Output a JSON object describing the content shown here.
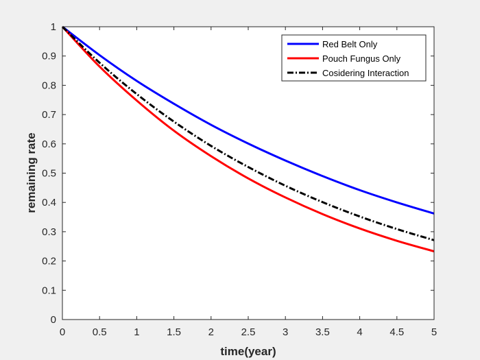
{
  "chart_data": {
    "type": "line",
    "xlabel": "time(year)",
    "ylabel": "remaining rate",
    "xlim": [
      0,
      5
    ],
    "ylim": [
      0,
      1
    ],
    "xticks": [
      0,
      0.5,
      1,
      1.5,
      2,
      2.5,
      3,
      3.5,
      4,
      4.5,
      5
    ],
    "xtick_labels": [
      "0",
      "0.5",
      "1",
      "1.5",
      "2",
      "2.5",
      "3",
      "3.5",
      "4",
      "4.5",
      "5"
    ],
    "yticks": [
      0,
      0.1,
      0.2,
      0.3,
      0.4,
      0.5,
      0.6,
      0.7,
      0.8,
      0.9,
      1
    ],
    "ytick_labels": [
      "0",
      "0.1",
      "0.2",
      "0.3",
      "0.4",
      "0.5",
      "0.6",
      "0.7",
      "0.8",
      "0.9",
      "1"
    ],
    "grid": false,
    "legend_position": "top-right",
    "x": [
      0,
      0.5,
      1,
      1.5,
      2,
      2.5,
      3,
      3.5,
      4,
      4.5,
      5
    ],
    "series": [
      {
        "name": "Red Belt Only",
        "color": "#0000ff",
        "style": "solid",
        "values": [
          1,
          0.903,
          0.815,
          0.737,
          0.665,
          0.601,
          0.543,
          0.49,
          0.442,
          0.4,
          0.362
        ]
      },
      {
        "name": "Pouch Fungus Only",
        "color": "#ff0000",
        "style": "solid",
        "values": [
          1,
          0.864,
          0.748,
          0.645,
          0.558,
          0.482,
          0.417,
          0.36,
          0.311,
          0.269,
          0.233
        ]
      },
      {
        "name": "Cosidering Interaction",
        "color": "#000000",
        "style": "dashdot",
        "values": [
          1,
          0.877,
          0.77,
          0.676,
          0.593,
          0.521,
          0.457,
          0.401,
          0.352,
          0.309,
          0.271
        ]
      }
    ]
  }
}
